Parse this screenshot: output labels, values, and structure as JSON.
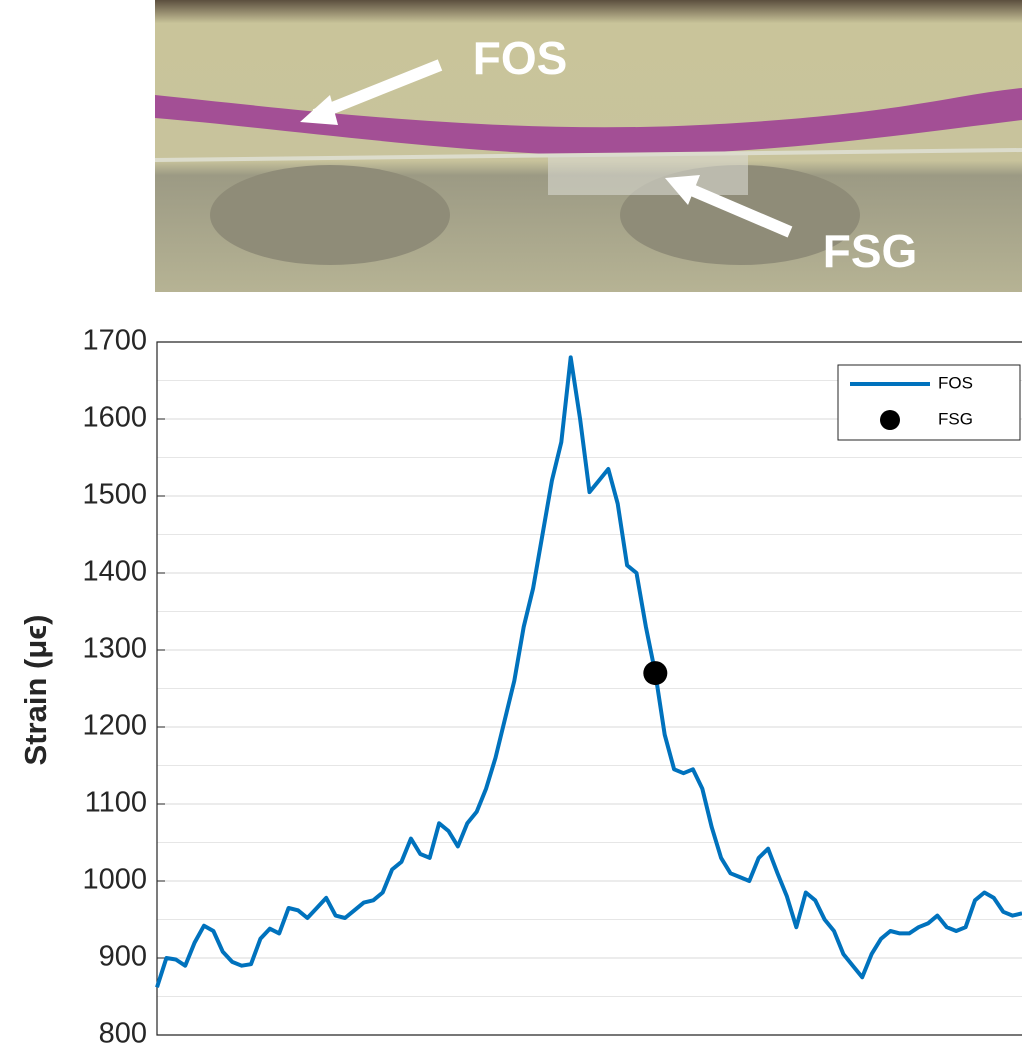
{
  "photo": {
    "labels": [
      "FOS",
      "FSG"
    ]
  },
  "chart_data": {
    "type": "line",
    "y_label": "Strain (μϵ)",
    "ylim": [
      800,
      1700
    ],
    "yticks": [
      800,
      900,
      1000,
      1100,
      1200,
      1300,
      1400,
      1500,
      1600,
      1700
    ],
    "y_minor_ticks": [
      850,
      950,
      1050,
      1150,
      1250,
      1350,
      1450,
      1550,
      1650
    ],
    "grid": true,
    "legend": "upper right",
    "series": [
      {
        "name": "FOS",
        "color": "#0072bd",
        "marker": "line",
        "values": [
          862,
          900,
          898,
          890,
          920,
          942,
          935,
          908,
          895,
          890,
          892,
          925,
          938,
          932,
          965,
          962,
          952,
          965,
          978,
          955,
          952,
          962,
          972,
          975,
          985,
          1015,
          1025,
          1055,
          1035,
          1030,
          1075,
          1065,
          1045,
          1075,
          1090,
          1120,
          1160,
          1210,
          1260,
          1330,
          1380,
          1450,
          1520,
          1570,
          1680,
          1600,
          1505,
          1520,
          1535,
          1490,
          1410,
          1400,
          1330,
          1270,
          1190,
          1145,
          1140,
          1145,
          1120,
          1070,
          1030,
          1010,
          1005,
          1000,
          1030,
          1042,
          1010,
          980,
          940,
          985,
          975,
          950,
          935,
          905,
          890,
          875,
          905,
          925,
          935,
          932,
          932,
          940,
          945,
          955,
          940,
          935,
          940,
          975,
          985,
          978,
          960,
          955,
          958
        ]
      },
      {
        "name": "FSG",
        "color": "#000000",
        "marker": "dot",
        "values": [
          null,
          null,
          null,
          null,
          null,
          null,
          null,
          null,
          null,
          null,
          null,
          null,
          null,
          null,
          null,
          null,
          null,
          null,
          null,
          null,
          null,
          null,
          null,
          null,
          null,
          null,
          null,
          null,
          null,
          null,
          null,
          null,
          null,
          null,
          null,
          null,
          null,
          null,
          null,
          null,
          null,
          null,
          null,
          null,
          null,
          null,
          null,
          null,
          null,
          null,
          null,
          null,
          null,
          1270,
          null,
          null,
          null,
          null,
          null,
          null,
          null,
          null,
          null,
          null,
          null,
          null,
          null,
          null,
          null,
          null,
          null,
          null,
          null,
          null,
          null,
          null,
          null,
          null,
          null,
          null,
          null,
          null,
          null,
          null,
          null,
          null,
          null,
          null,
          null,
          null,
          null,
          null,
          null
        ]
      }
    ]
  }
}
